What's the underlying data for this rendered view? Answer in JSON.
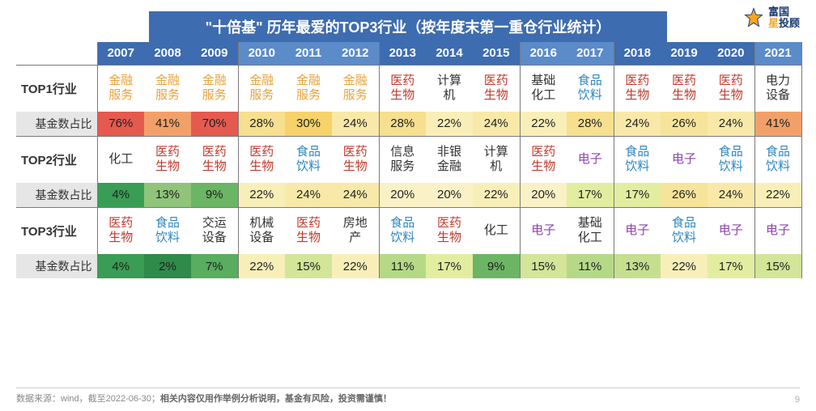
{
  "title": "\"十倍基\" 历年最爱的TOP3行业（按年度末第一重仓行业统计）",
  "logo": {
    "top": "富国",
    "bot_prefix": "星",
    "bot_rest": "投顾"
  },
  "years": [
    "2007",
    "2008",
    "2009",
    "2010",
    "2011",
    "2012",
    "2013",
    "2014",
    "2015",
    "2016",
    "2017",
    "2018",
    "2019",
    "2020",
    "2021"
  ],
  "year_header_groups": [
    {
      "count": 3,
      "bg": "#3d6cb0"
    },
    {
      "count": 3,
      "bg": "#5b8bc9"
    },
    {
      "count": 3,
      "bg": "#3d6cb0"
    },
    {
      "count": 2,
      "bg": "#5b8bc9"
    },
    {
      "count": 3,
      "bg": "#3d6cb0"
    },
    {
      "count": 1,
      "bg": "#5b8bc9"
    }
  ],
  "row_labels": {
    "top1": "TOP1行业",
    "r1": "基金数占比",
    "top2": "TOP2行业",
    "r2": "基金数占比",
    "top3": "TOP3行业",
    "r3": "基金数占比"
  },
  "sector_colors": {
    "金融服务": "#e8a33d",
    "医药生物": "#c0392b",
    "食品饮料": "#2e86c1",
    "计算机": "#333333",
    "基础化工": "#333333",
    "电子": "#8e44ad",
    "电力设备": "#333333",
    "化工": "#333333",
    "信息服务": "#333333",
    "非银金融": "#333333",
    "交运设备": "#333333",
    "机械设备": "#333333",
    "房地产": "#333333"
  },
  "top1": {
    "sectors": [
      "金融服务",
      "金融服务",
      "金融服务",
      "金融服务",
      "金融服务",
      "金融服务",
      "医药生物",
      "计算机",
      "医药生物",
      "基础化工",
      "食品饮料",
      "医药生物",
      "医药生物",
      "医药生物",
      "电力设备"
    ],
    "ratios": [
      "76%",
      "41%",
      "70%",
      "28%",
      "30%",
      "24%",
      "28%",
      "22%",
      "24%",
      "22%",
      "28%",
      "24%",
      "26%",
      "24%",
      "41%"
    ],
    "ratio_bg": [
      "#e55a4f",
      "#f2a06a",
      "#e55a4f",
      "#f6df8e",
      "#f6d26a",
      "#f8e9a8",
      "#f6df8e",
      "#f8efb8",
      "#f8e9a8",
      "#f8efb8",
      "#f6df8e",
      "#f8e9a8",
      "#f6e49a",
      "#f8e9a8",
      "#f2a06a"
    ]
  },
  "top2": {
    "sectors": [
      "化工",
      "医药生物",
      "医药生物",
      "医药生物",
      "食品饮料",
      "医药生物",
      "信息服务",
      "非银金融",
      "计算机",
      "医药生物",
      "电子",
      "食品饮料",
      "电子",
      "食品饮料",
      "食品饮料"
    ],
    "ratios": [
      "4%",
      "13%",
      "9%",
      "22%",
      "24%",
      "24%",
      "20%",
      "20%",
      "22%",
      "20%",
      "17%",
      "17%",
      "26%",
      "24%",
      "22%"
    ],
    "ratio_bg": [
      "#3a9d55",
      "#8fc47a",
      "#6bb564",
      "#f8efb8",
      "#f8e9a8",
      "#f8e9a8",
      "#faf2c6",
      "#faf2c6",
      "#f8efb8",
      "#faf2c6",
      "#e3eda0",
      "#e3eda0",
      "#f6e49a",
      "#f8e9a8",
      "#f8efb8"
    ]
  },
  "top3": {
    "sectors": [
      "医药生物",
      "食品饮料",
      "交运设备",
      "机械设备",
      "医药生物",
      "房地产",
      "食品饮料",
      "医药生物",
      "化工",
      "电子",
      "基础化工",
      "电子",
      "食品饮料",
      "电子",
      "电子"
    ],
    "ratios": [
      "4%",
      "2%",
      "7%",
      "22%",
      "15%",
      "22%",
      "11%",
      "17%",
      "9%",
      "15%",
      "11%",
      "13%",
      "22%",
      "17%",
      "15%"
    ],
    "ratio_bg": [
      "#3a9d55",
      "#2e8b4a",
      "#58ad5f",
      "#f8efb8",
      "#d2e598",
      "#f8efb8",
      "#b5d987",
      "#e3eda0",
      "#6bb564",
      "#d2e598",
      "#b5d987",
      "#c5df8f",
      "#f8efb8",
      "#e3eda0",
      "#d2e598"
    ]
  },
  "group_separators_after": [
    3,
    6,
    9,
    11,
    14,
    15
  ],
  "footer": {
    "prefix": "数据来源：wind，截至2022-06-30；",
    "strong": "相关内容仅用作举例分析说明，基金有风险，投资需谨慎！"
  },
  "pagenum": "9",
  "style": {
    "label_col_width": 100,
    "year_col_width": 58,
    "title_bg": "#3d6cb0",
    "ratio_label_bg": "#e6e6e6"
  }
}
